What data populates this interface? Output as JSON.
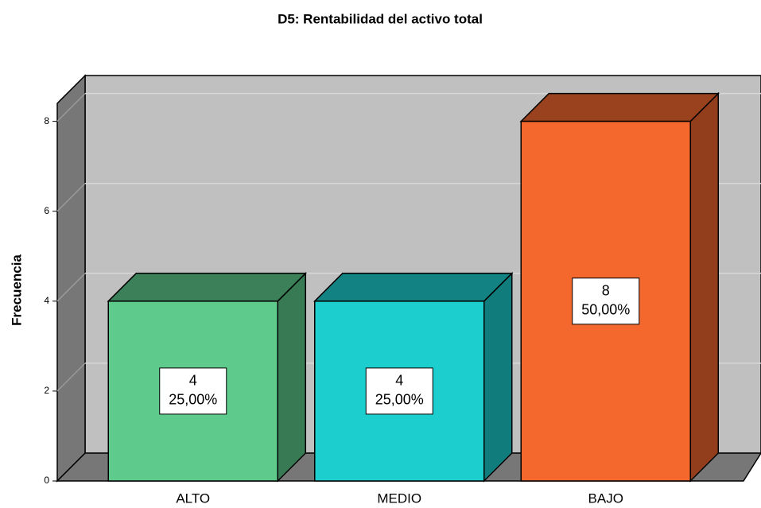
{
  "chart_data": {
    "type": "bar3d",
    "title": "D5: Rentabilidad del activo total",
    "y_label": "Frecuencia",
    "categories": [
      "ALTO",
      "MEDIO",
      "BAJO"
    ],
    "values": [
      4,
      4,
      8
    ],
    "percentages": [
      25,
      25,
      50
    ],
    "percentage_labels": [
      "25,00%",
      "25,00%",
      "50,00%"
    ],
    "colors": [
      "#5ecb8c",
      "#1dcece",
      "#f4682e"
    ],
    "ylim": [
      0,
      8.4
    ],
    "yticks": [
      0,
      2,
      4,
      6,
      8
    ],
    "grid": true
  }
}
